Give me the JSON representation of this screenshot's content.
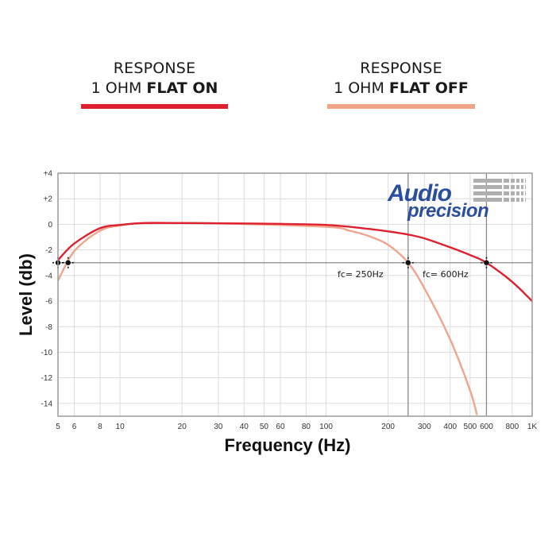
{
  "legend": [
    {
      "line1": "RESPONSE",
      "line2_normal": "1 OHM ",
      "line2_bold": "FLAT ON",
      "color": "#e0202e"
    },
    {
      "line1": "RESPONSE",
      "line2_normal": "1 OHM ",
      "line2_bold": "FLAT OFF",
      "color": "#f0a48a"
    }
  ],
  "logo": {
    "line1": "Audio",
    "line2": "precision",
    "color": "#2b4f9e"
  },
  "annotations": {
    "fc1": "fc= 250Hz",
    "fc2": "fc= 600Hz"
  },
  "chart_data": {
    "type": "line",
    "title": "",
    "xlabel": "Frequency (Hz)",
    "ylabel": "Level (db)",
    "xscale": "log",
    "xlim": [
      5,
      1000
    ],
    "ylim": [
      -15,
      4
    ],
    "grid": true,
    "x_ticks": [
      5,
      6,
      8,
      10,
      20,
      30,
      40,
      50,
      60,
      80,
      100,
      200,
      300,
      400,
      500,
      600,
      800,
      1000
    ],
    "x_tick_labels": [
      "5",
      "6",
      "8",
      "10",
      "20",
      "30",
      "40",
      "50",
      "60",
      "80",
      "100",
      "200",
      "300",
      "400",
      "500",
      "600",
      "800",
      "1K"
    ],
    "y_ticks": [
      4,
      2,
      0,
      -2,
      -4,
      -6,
      -8,
      -10,
      -12,
      -14
    ],
    "y_tick_labels": [
      "+4",
      "+2",
      "0",
      "-2",
      "-4",
      "-6",
      "-8",
      "-10",
      "-12",
      "-14"
    ],
    "reference_lines": {
      "horizontal_db": -3,
      "vertical_hz": [
        250,
        600
      ]
    },
    "markers": [
      {
        "x": 5,
        "y": -3
      },
      {
        "x": 5.6,
        "y": -3
      },
      {
        "x": 250,
        "y": -3
      },
      {
        "x": 600,
        "y": -3
      }
    ],
    "annotations": [
      {
        "text": "fc= 250Hz",
        "x": 250,
        "y": -3
      },
      {
        "text": "fc= 600Hz",
        "x": 600,
        "y": -3
      }
    ],
    "series": [
      {
        "name": "1 OHM FLAT ON",
        "color": "#e0202e",
        "x": [
          5,
          6,
          8,
          10,
          13,
          20,
          50,
          100,
          150,
          200,
          250,
          300,
          400,
          500,
          600,
          800,
          1000
        ],
        "values": [
          -2.8,
          -1.5,
          -0.3,
          -0.05,
          0.1,
          0.1,
          0.05,
          -0.05,
          -0.3,
          -0.55,
          -0.8,
          -1.1,
          -1.8,
          -2.4,
          -3.0,
          -4.5,
          -6.0
        ]
      },
      {
        "name": "1 OHM FLAT OFF",
        "color": "#f0a48a",
        "x": [
          5,
          6,
          8,
          10,
          13,
          30,
          100,
          130,
          160,
          200,
          250,
          300,
          400,
          500,
          540
        ],
        "values": [
          -4.4,
          -2.1,
          -0.5,
          -0.1,
          0.08,
          0.07,
          -0.2,
          -0.5,
          -0.9,
          -1.6,
          -3.0,
          -5.0,
          -9.0,
          -13.0,
          -14.9
        ]
      }
    ]
  }
}
